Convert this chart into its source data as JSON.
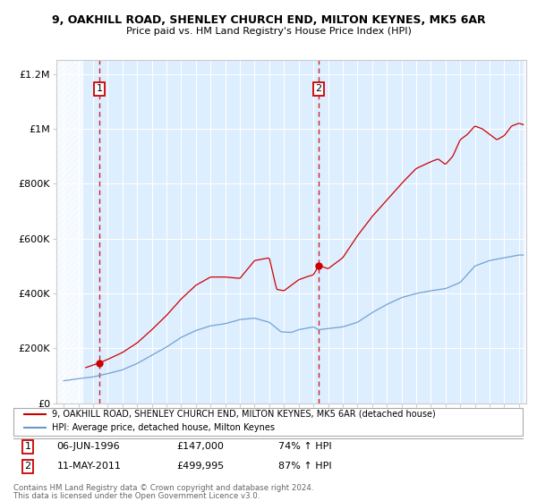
{
  "title1": "9, OAKHILL ROAD, SHENLEY CHURCH END, MILTON KEYNES, MK5 6AR",
  "title2": "Price paid vs. HM Land Registry's House Price Index (HPI)",
  "bg_color": "#ddeeff",
  "purchase1_year": 1996.43,
  "purchase1_price": 147000,
  "purchase2_year": 2011.36,
  "purchase2_price": 499995,
  "legend_line1": "9, OAKHILL ROAD, SHENLEY CHURCH END, MILTON KEYNES, MK5 6AR (detached house)",
  "legend_line2": "HPI: Average price, detached house, Milton Keynes",
  "footer1": "Contains HM Land Registry data © Crown copyright and database right 2024.",
  "footer2": "This data is licensed under the Open Government Licence v3.0.",
  "ann1_date": "06-JUN-1996",
  "ann1_price": "£147,000",
  "ann1_hpi": "74% ↑ HPI",
  "ann2_date": "11-MAY-2011",
  "ann2_price": "£499,995",
  "ann2_hpi": "87% ↑ HPI",
  "ylim_max": 1250000,
  "xmin": 1993.5,
  "xmax": 2025.5,
  "ylabel_ticks": [
    0,
    200000,
    400000,
    600000,
    800000,
    1000000,
    1200000
  ],
  "ylabel_labels": [
    "£0",
    "£200K",
    "£400K",
    "£600K",
    "£800K",
    "£1M",
    "£1.2M"
  ],
  "red_color": "#cc0000",
  "blue_color": "#6699cc"
}
